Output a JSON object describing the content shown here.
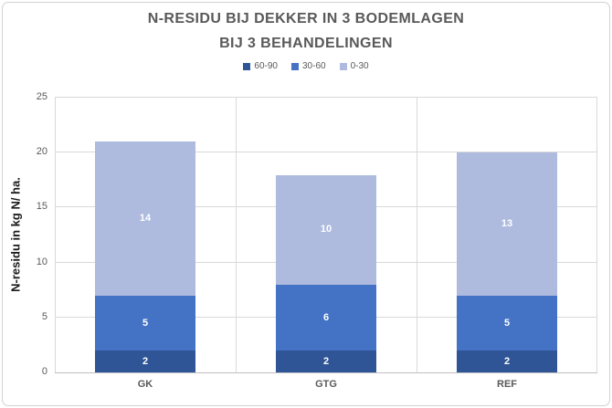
{
  "chart_data": {
    "type": "bar",
    "stacked": true,
    "title_lines": [
      "N-RESIDU BIJ DEKKER IN 3 BODEMLAGEN",
      "BIJ 3 BEHANDELINGEN"
    ],
    "title": "N-RESIDU BIJ DEKKER IN 3 BODEMLAGEN BIJ 3 BEHANDELINGEN",
    "categories": [
      "GK",
      "GTG",
      "REF"
    ],
    "series": [
      {
        "name": "60-90",
        "color": "#2F5597",
        "values": [
          2,
          2,
          2
        ]
      },
      {
        "name": "30-60",
        "color": "#4472C4",
        "values": [
          5,
          6,
          5
        ]
      },
      {
        "name": "0-30",
        "color": "#AEBBDF",
        "values": [
          14,
          10,
          13
        ]
      }
    ],
    "data_labels_shown": true,
    "xlabel": "",
    "ylabel": "N-residu in kg N/ ha.",
    "ylim": [
      0,
      25
    ],
    "yticks": [
      0,
      5,
      10,
      15,
      20,
      25
    ],
    "grid": true,
    "legend_position": "top",
    "colors": {
      "title_text": "#595959",
      "axis_text": "#595959",
      "y_title_text": "#1a1a1a",
      "gridline": "#d9d9d9",
      "axis_line": "#bfbfbf",
      "data_label_text": "#ffffff",
      "background": "#ffffff",
      "border": "#d2d2d2"
    }
  }
}
